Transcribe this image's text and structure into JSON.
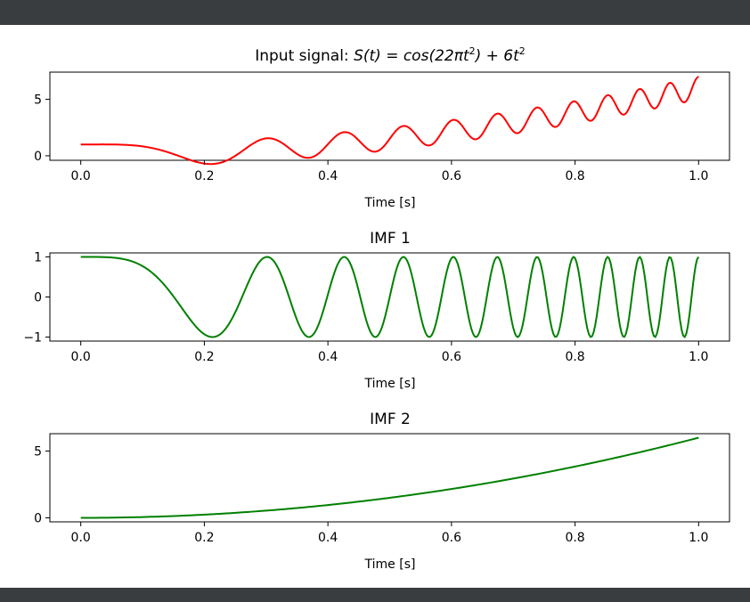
{
  "chart_data": [
    {
      "type": "line",
      "title": "Input signal: S(t) = cos(22πt²) + 6t²",
      "title_parts": {
        "prefix": "Input signal: ",
        "formula_a": "S(t) = cos(22πt",
        "exp1": "2",
        "formula_b": ") + 6t",
        "exp2": "2"
      },
      "xlabel": "Time [s]",
      "ylabel": "",
      "xlim": [
        0,
        1.0
      ],
      "ylim": [
        -0.4,
        7.4
      ],
      "xticks": [
        0.0,
        0.2,
        0.4,
        0.6,
        0.8,
        1.0
      ],
      "xtick_labels": [
        "0.0",
        "0.2",
        "0.4",
        "0.6",
        "0.8",
        "1.0"
      ],
      "yticks": [
        0,
        5
      ],
      "ytick_labels": [
        "0",
        "5"
      ],
      "color": "#ff0000",
      "series": [
        {
          "name": "S(t)",
          "expression": "cos(22*pi*t^2) + 6*t^2",
          "samples": 400
        }
      ]
    },
    {
      "type": "line",
      "title": "IMF 1",
      "xlabel": "Time [s]",
      "ylabel": "",
      "xlim": [
        0,
        1.0
      ],
      "ylim": [
        -1.1,
        1.1
      ],
      "xticks": [
        0.0,
        0.2,
        0.4,
        0.6,
        0.8,
        1.0
      ],
      "xtick_labels": [
        "0.0",
        "0.2",
        "0.4",
        "0.6",
        "0.8",
        "1.0"
      ],
      "yticks": [
        1,
        0,
        -1
      ],
      "ytick_labels": [
        "1",
        "0",
        "−1"
      ],
      "color": "#008000",
      "series": [
        {
          "name": "IMF 1",
          "expression": "cos(22*pi*t^2)",
          "samples": 400
        }
      ]
    },
    {
      "type": "line",
      "title": "IMF 2",
      "xlabel": "Time [s]",
      "ylabel": "",
      "xlim": [
        0,
        1.0
      ],
      "ylim": [
        -0.3,
        6.3
      ],
      "xticks": [
        0.0,
        0.2,
        0.4,
        0.6,
        0.8,
        1.0
      ],
      "xtick_labels": [
        "0.0",
        "0.2",
        "0.4",
        "0.6",
        "0.8",
        "1.0"
      ],
      "yticks": [
        0,
        5
      ],
      "ytick_labels": [
        "0",
        "5"
      ],
      "color": "#008000",
      "series": [
        {
          "name": "IMF 2",
          "expression": "6*t^2",
          "samples": 200
        }
      ]
    }
  ]
}
